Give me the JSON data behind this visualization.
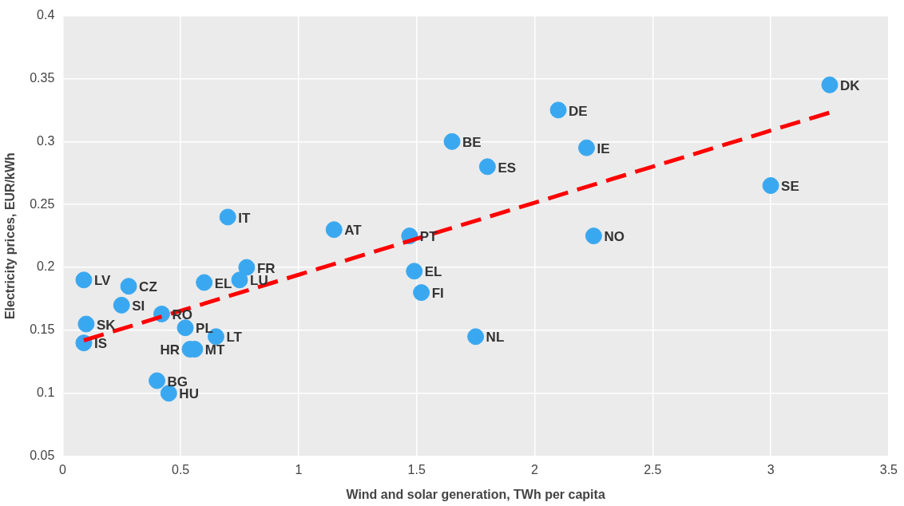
{
  "chart_data": {
    "type": "scatter",
    "xlabel": "Wind and solar generation, TWh per capita",
    "ylabel": "Electricity prices, EUR/kWh",
    "xlim": [
      0,
      3.5
    ],
    "xticks": [
      0,
      0.5,
      1,
      1.5,
      2,
      2.5,
      3,
      3.5
    ],
    "ylim": [
      0.05,
      0.4
    ],
    "yticks": [
      0.05,
      0.1,
      0.15,
      0.2,
      0.25,
      0.3,
      0.35,
      0.4
    ],
    "grid": true,
    "legend": false,
    "series": [
      {
        "marker": "circle",
        "color": "#3aa8f0",
        "x": [
          0.09,
          0.28,
          0.25,
          0.42,
          0.1,
          0.09,
          0.6,
          0.75,
          0.78,
          0.7,
          0.52,
          0.65,
          0.54,
          0.56,
          0.4,
          0.45,
          1.15,
          1.47,
          1.49,
          1.52,
          1.75,
          1.65,
          1.8,
          2.1,
          2.22,
          2.25,
          3.0,
          3.25
        ],
        "values": [
          0.19,
          0.185,
          0.17,
          0.163,
          0.155,
          0.14,
          0.188,
          0.19,
          0.2,
          0.24,
          0.152,
          0.145,
          0.135,
          0.135,
          0.11,
          0.1,
          0.23,
          0.225,
          0.197,
          0.18,
          0.145,
          0.3,
          0.28,
          0.325,
          0.295,
          0.225,
          0.265,
          0.345
        ]
      },
      {
        "type": "line",
        "color": "#ff0000",
        "line_style": "dashed",
        "x": [
          0.09,
          3.25
        ],
        "values": [
          0.142,
          0.323
        ]
      }
    ],
    "annotations": [
      {
        "text": "LV",
        "x": 0.09,
        "y": 0.19
      },
      {
        "text": "CZ",
        "x": 0.28,
        "y": 0.185
      },
      {
        "text": "SI",
        "x": 0.25,
        "y": 0.17
      },
      {
        "text": "RO",
        "x": 0.42,
        "y": 0.163
      },
      {
        "text": "SK",
        "x": 0.1,
        "y": 0.155
      },
      {
        "text": "IS",
        "x": 0.09,
        "y": 0.14
      },
      {
        "text": "EL",
        "x": 0.6,
        "y": 0.188
      },
      {
        "text": "LU",
        "x": 0.75,
        "y": 0.19
      },
      {
        "text": "FR",
        "x": 0.78,
        "y": 0.2
      },
      {
        "text": "IT",
        "x": 0.7,
        "y": 0.24
      },
      {
        "text": "PL",
        "x": 0.52,
        "y": 0.152
      },
      {
        "text": "LT",
        "x": 0.65,
        "y": 0.145
      },
      {
        "text": "HR",
        "x": 0.54,
        "y": 0.135
      },
      {
        "text": "MT",
        "x": 0.56,
        "y": 0.135
      },
      {
        "text": "BG",
        "x": 0.4,
        "y": 0.11
      },
      {
        "text": "HU",
        "x": 0.45,
        "y": 0.1
      },
      {
        "text": "AT",
        "x": 1.15,
        "y": 0.23
      },
      {
        "text": "PT",
        "x": 1.47,
        "y": 0.225
      },
      {
        "text": "EL",
        "x": 1.49,
        "y": 0.197
      },
      {
        "text": "FI",
        "x": 1.52,
        "y": 0.18
      },
      {
        "text": "NL",
        "x": 1.75,
        "y": 0.145
      },
      {
        "text": "BE",
        "x": 1.65,
        "y": 0.3
      },
      {
        "text": "ES",
        "x": 1.8,
        "y": 0.28
      },
      {
        "text": "DE",
        "x": 2.1,
        "y": 0.325
      },
      {
        "text": "IE",
        "x": 2.22,
        "y": 0.295
      },
      {
        "text": "NO",
        "x": 2.25,
        "y": 0.225
      },
      {
        "text": "SE",
        "x": 3.0,
        "y": 0.265
      },
      {
        "text": "DK",
        "x": 3.25,
        "y": 0.345
      }
    ]
  }
}
